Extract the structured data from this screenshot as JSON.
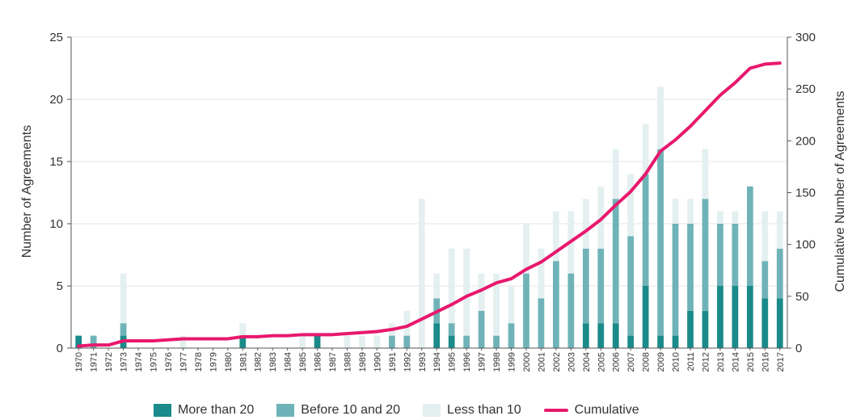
{
  "chart_data": {
    "type": "bar",
    "title": "",
    "xlabel": "",
    "ylabel": "Number of Agreements",
    "y2label": "Cumulative Number of Agreements",
    "ylim": [
      0,
      25
    ],
    "y2lim": [
      0,
      300
    ],
    "yticks": [
      0,
      5,
      10,
      15,
      20,
      25
    ],
    "y2ticks": [
      0,
      50,
      100,
      150,
      200,
      250,
      300
    ],
    "grid": true,
    "stacked": true,
    "legend_position": "bottom",
    "categories": [
      "1970",
      "1971",
      "1972",
      "1973",
      "1974",
      "1975",
      "1976",
      "1977",
      "1978",
      "1979",
      "1980",
      "1981",
      "1982",
      "1983",
      "1984",
      "1985",
      "1986",
      "1987",
      "1988",
      "1989",
      "1990",
      "1991",
      "1992",
      "1993",
      "1994",
      "1995",
      "1996",
      "1997",
      "1998",
      "1999",
      "2000",
      "2001",
      "2002",
      "2003",
      "2004",
      "2005",
      "2006",
      "2007",
      "2008",
      "2009",
      "2010",
      "2011",
      "2012",
      "2013",
      "2014",
      "2015",
      "2016",
      "2017"
    ],
    "series": [
      {
        "name": "More than 20",
        "color": "#1a8a8a",
        "kind": "bar",
        "values": [
          1,
          0,
          0,
          1,
          0,
          0,
          0,
          0,
          0,
          0,
          0,
          1,
          0,
          0,
          0,
          0,
          1,
          0,
          0,
          0,
          0,
          0,
          0,
          0,
          2,
          1,
          0,
          0,
          0,
          0,
          0,
          0,
          0,
          0,
          2,
          2,
          2,
          1,
          5,
          1,
          1,
          3,
          3,
          5,
          5,
          5,
          4,
          4
        ]
      },
      {
        "name": "Before 10 and 20",
        "color": "#6fb3b8",
        "kind": "bar",
        "values": [
          0,
          1,
          0,
          1,
          0,
          0,
          0,
          0,
          0,
          0,
          0,
          0,
          0,
          0,
          0,
          0,
          0,
          0,
          0,
          0,
          0,
          1,
          1,
          0,
          2,
          1,
          1,
          3,
          1,
          2,
          6,
          4,
          7,
          6,
          6,
          6,
          10,
          8,
          9,
          15,
          9,
          7,
          9,
          5,
          5,
          8,
          3,
          4
        ]
      },
      {
        "name": "Less than 10",
        "color": "#e4eff0",
        "kind": "bar",
        "values": [
          0,
          0,
          0,
          4,
          0,
          0,
          0,
          1,
          0,
          0,
          0,
          1,
          0,
          0,
          0,
          1,
          0,
          0,
          1,
          1,
          1,
          1,
          2,
          12,
          2,
          6,
          7,
          3,
          5,
          3,
          4,
          4,
          4,
          5,
          4,
          5,
          4,
          5,
          4,
          5,
          2,
          2,
          4,
          1,
          1,
          0,
          4,
          3
        ]
      },
      {
        "name": "Cumulative",
        "color": "#e8186d",
        "kind": "line",
        "axis": "right",
        "values": [
          2,
          3,
          3,
          7,
          7,
          7,
          8,
          9,
          9,
          9,
          9,
          11,
          11,
          12,
          12,
          13,
          13,
          13,
          14,
          15,
          16,
          18,
          21,
          28,
          35,
          42,
          50,
          56,
          63,
          67,
          76,
          83,
          93,
          103,
          113,
          124,
          138,
          151,
          168,
          190,
          201,
          214,
          229,
          244,
          256,
          270,
          274,
          275
        ]
      }
    ]
  }
}
